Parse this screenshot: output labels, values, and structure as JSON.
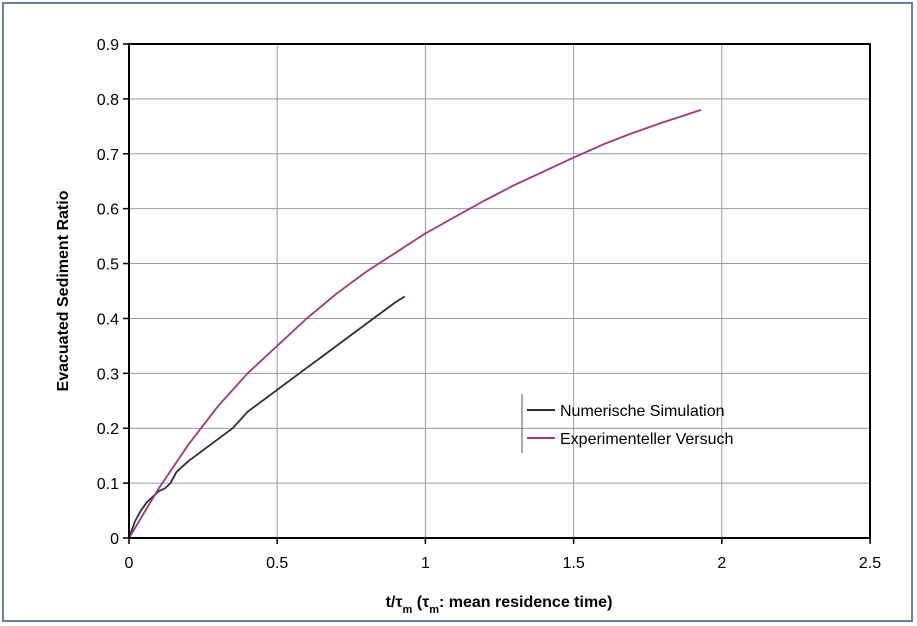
{
  "chart_data": {
    "type": "line",
    "xlabel": {
      "prefix": "t/τ",
      "sub": "m",
      "mid": " (τ",
      "sub2": "m",
      "suffix": ": mean residence time)"
    },
    "ylabel": "Evacuated Sediment Ratio",
    "xlim": [
      0,
      2.5
    ],
    "ylim": [
      0,
      0.9
    ],
    "x_ticks": [
      "0",
      "0.5",
      "1",
      "1.5",
      "2",
      "2.5"
    ],
    "y_ticks": [
      "0",
      "0.1",
      "0.2",
      "0.3",
      "0.4",
      "0.5",
      "0.6",
      "0.7",
      "0.8",
      "0.9"
    ],
    "grid": true,
    "legend_position": "right, middle",
    "series": [
      {
        "name": "Numerische Simulation",
        "color": "#2b2b4a",
        "x": [
          0,
          0.02,
          0.04,
          0.06,
          0.08,
          0.1,
          0.12,
          0.14,
          0.16,
          0.2,
          0.25,
          0.3,
          0.35,
          0.4,
          0.45,
          0.5,
          0.55,
          0.6,
          0.65,
          0.7,
          0.75,
          0.8,
          0.85,
          0.9,
          0.93
        ],
        "y": [
          0,
          0.03,
          0.05,
          0.065,
          0.075,
          0.085,
          0.09,
          0.1,
          0.12,
          0.14,
          0.16,
          0.18,
          0.2,
          0.23,
          0.25,
          0.27,
          0.29,
          0.31,
          0.33,
          0.35,
          0.37,
          0.39,
          0.41,
          0.43,
          0.44
        ]
      },
      {
        "name": "Experimenteller Versuch",
        "color": "#9b3a7a",
        "x": [
          0,
          0.1,
          0.2,
          0.3,
          0.4,
          0.5,
          0.6,
          0.7,
          0.8,
          0.9,
          1.0,
          1.1,
          1.2,
          1.3,
          1.4,
          1.5,
          1.6,
          1.7,
          1.8,
          1.93
        ],
        "y": [
          0,
          0.09,
          0.17,
          0.24,
          0.3,
          0.35,
          0.4,
          0.445,
          0.485,
          0.52,
          0.555,
          0.585,
          0.615,
          0.643,
          0.668,
          0.693,
          0.717,
          0.738,
          0.757,
          0.78
        ]
      }
    ]
  }
}
